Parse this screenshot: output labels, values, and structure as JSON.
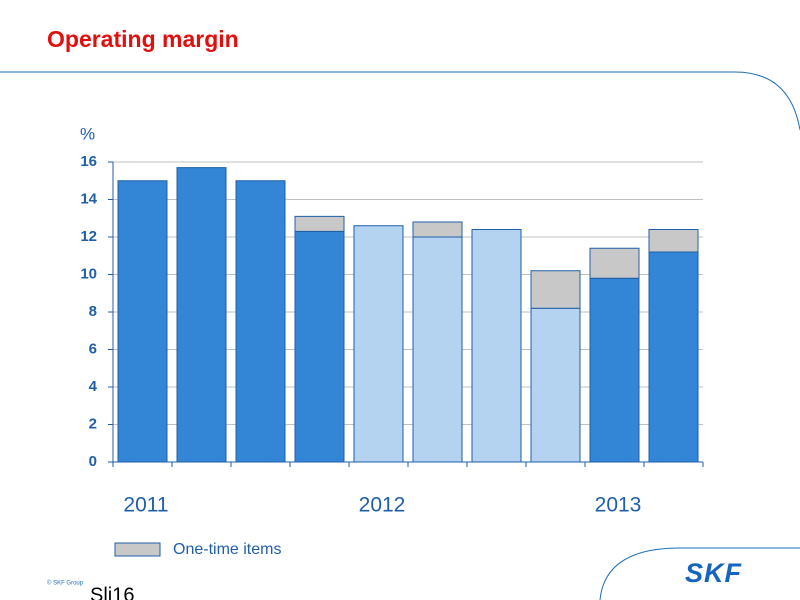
{
  "title": "Operating margin",
  "footer": "© SKF Group",
  "slide_label": "Sli16",
  "logo": "SKF",
  "chart_data": {
    "type": "bar",
    "stacked": true,
    "y_unit": "%",
    "categories": [
      "2011",
      null,
      null,
      null,
      "2012",
      null,
      null,
      null,
      "2013",
      null
    ],
    "series": [
      {
        "colors": [
          "#3385d6",
          "#3385d6",
          "#3385d6",
          "#3385d6",
          "#b3d3f0",
          "#b3d3f0",
          "#b3d3f0",
          "#b3d3f0",
          "#3385d6",
          "#3385d6"
        ],
        "values": [
          15,
          15.7,
          15,
          12.3,
          12.6,
          12,
          12.4,
          8.2,
          9.8,
          11.2
        ]
      },
      {
        "name": "One-time items",
        "color": "#c8c8c8",
        "values": [
          null,
          null,
          null,
          0.8,
          null,
          0.8,
          null,
          2.0,
          1.6,
          1.2
        ]
      }
    ],
    "ylim": [
      0,
      16
    ],
    "yticks": [
      0,
      2,
      4,
      6,
      8,
      10,
      12,
      14,
      16
    ],
    "grid": true
  }
}
